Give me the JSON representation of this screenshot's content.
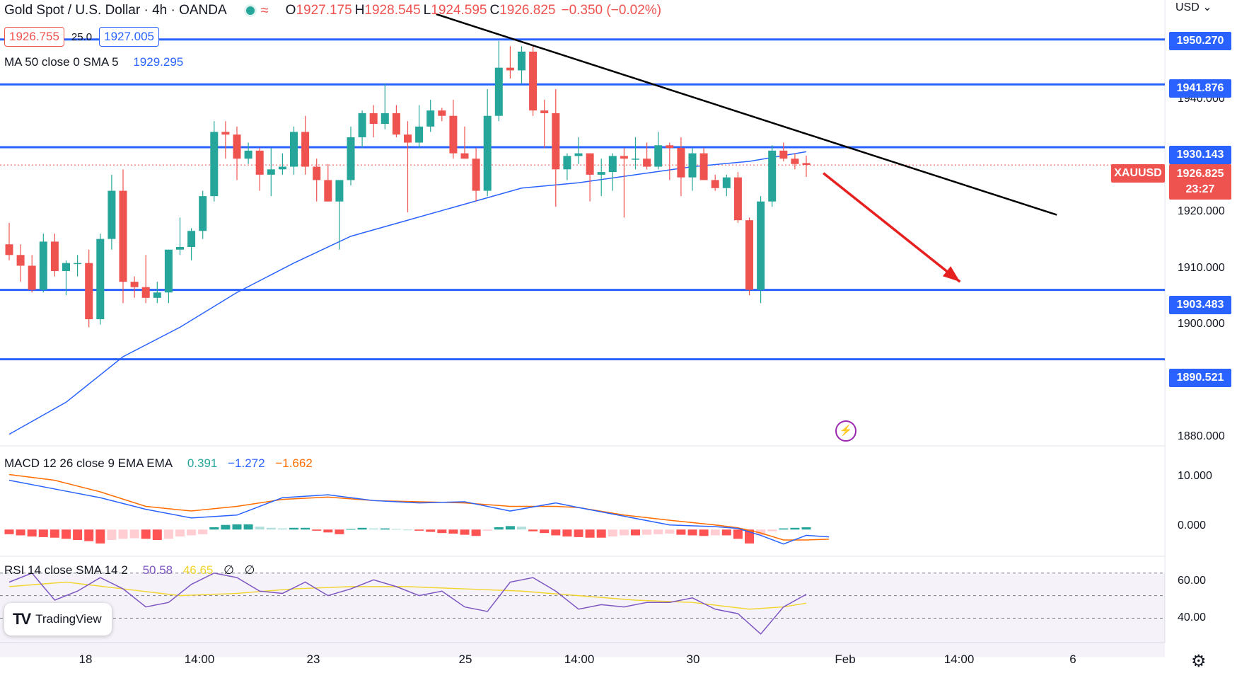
{
  "header": {
    "title": "Gold Spot / U.S. Dollar · 4h · OANDA",
    "open_label": "O",
    "open": "1927.175",
    "high_label": "H",
    "high": "1928.545",
    "low_label": "L",
    "low": "1924.595",
    "close_label": "C",
    "close": "1926.825",
    "change": "−0.350 (−0.02%)"
  },
  "bidask": {
    "bid": "1926.755",
    "spread": "25.0",
    "ask": "1927.005"
  },
  "ma_legend": {
    "name": "MA 50 close 0 SMA 5",
    "value": "1929.295"
  },
  "macd_legend": {
    "name": "MACD 12 26 close 9 EMA EMA",
    "hist": "0.391",
    "macd": "−1.272",
    "signal": "−1.662"
  },
  "rsi_legend": {
    "name": "RSI 14 close SMA 14 2",
    "rsi": "50.58",
    "sma": "46.65",
    "extra1": "∅",
    "extra2": "∅"
  },
  "currency": "USD",
  "symbol": "XAUUSD",
  "current_price": "1926.825",
  "countdown": "23:27",
  "brand": "TradingView",
  "colors": {
    "up": "#26a69a",
    "down": "#ef5350",
    "level": "#2962ff",
    "ma": "#2962ff",
    "macd": "#2962ff",
    "signal": "#ff6d00",
    "rsi": "#7e57c2",
    "rsi_sma": "#f2d530",
    "trend": "#000000",
    "arrow": "#e5201f"
  },
  "chart_data": [
    {
      "type": "candlestick",
      "title": "Gold Spot / U.S. Dollar · 4h · OANDA",
      "ylim": [
        1875,
        1955
      ],
      "yticks": [
        "1880.000",
        "1900.000",
        "1910.000",
        "1920.000",
        "1940.000"
      ],
      "xticks": [
        {
          "label": "18",
          "i": 7
        },
        {
          "label": "14:00",
          "i": 17
        },
        {
          "label": "23",
          "i": 27
        },
        {
          "label": "25",
          "i": 40
        },
        {
          "label": "14:00",
          "i": 50
        },
        {
          "label": "30",
          "i": 60
        },
        {
          "label": "Feb",
          "i": 74
        },
        {
          "label": "14:00",
          "i": 84
        },
        {
          "label": "6",
          "i": 94
        }
      ],
      "candles": [
        [
          1912.0,
          1916.0,
          1909.0,
          1910.0
        ],
        [
          1910.0,
          1912.0,
          1905.0,
          1908.0
        ],
        [
          1908.0,
          1910.0,
          1903.0,
          1903.5
        ],
        [
          1903.5,
          1914.0,
          1903.0,
          1912.5
        ],
        [
          1912.5,
          1914.0,
          1906.0,
          1907.0
        ],
        [
          1907.0,
          1909.0,
          1902.5,
          1908.5
        ],
        [
          1908.5,
          1910.0,
          1906.0,
          1908.5
        ],
        [
          1908.5,
          1911.0,
          1896.5,
          1898.0
        ],
        [
          1898.0,
          1914.0,
          1897.0,
          1913.0
        ],
        [
          1913.0,
          1925.0,
          1911.0,
          1922.0
        ],
        [
          1922.0,
          1926.0,
          1901.0,
          1905.0
        ],
        [
          1905.0,
          1906.0,
          1902.0,
          1904.0
        ],
        [
          1904.0,
          1910.0,
          1901.0,
          1902.0
        ],
        [
          1902.0,
          1905.0,
          1901.0,
          1903.0
        ],
        [
          1903.0,
          1911.0,
          1901.0,
          1911.0
        ],
        [
          1911.0,
          1917.0,
          1910.0,
          1911.5
        ],
        [
          1911.5,
          1915.0,
          1909.0,
          1914.5
        ],
        [
          1914.5,
          1922.0,
          1913.0,
          1921.0
        ],
        [
          1921.0,
          1935.0,
          1920.0,
          1933.0
        ],
        [
          1933.0,
          1935.0,
          1928.0,
          1932.5
        ],
        [
          1932.5,
          1934.0,
          1924.0,
          1928.0
        ],
        [
          1928.0,
          1931.0,
          1927.0,
          1929.5
        ],
        [
          1929.5,
          1930.0,
          1922.0,
          1925.0
        ],
        [
          1925.0,
          1930.0,
          1921.0,
          1926.0
        ],
        [
          1926.0,
          1929.0,
          1925.0,
          1926.5
        ],
        [
          1926.5,
          1934.0,
          1925.0,
          1933.0
        ],
        [
          1933.0,
          1936.0,
          1925.0,
          1926.5
        ],
        [
          1926.5,
          1928.0,
          1920.0,
          1924.0
        ],
        [
          1924.0,
          1927.0,
          1920.0,
          1920.0
        ],
        [
          1920.0,
          1924.0,
          1911.0,
          1924.0
        ],
        [
          1924.0,
          1934.0,
          1923.0,
          1932.0
        ],
        [
          1932.0,
          1937.0,
          1930.0,
          1936.5
        ],
        [
          1936.5,
          1938.0,
          1932.0,
          1934.5
        ],
        [
          1934.5,
          1942.0,
          1933.5,
          1936.5
        ],
        [
          1936.5,
          1938.0,
          1932.0,
          1932.5
        ],
        [
          1932.5,
          1935.0,
          1918.0,
          1931.0
        ],
        [
          1931.0,
          1938.0,
          1930.0,
          1934.0
        ],
        [
          1934.0,
          1939.0,
          1933.0,
          1937.0
        ],
        [
          1937.0,
          1937.5,
          1935.0,
          1936.0
        ],
        [
          1936.0,
          1939.0,
          1928.0,
          1929.0
        ],
        [
          1929.0,
          1934.0,
          1928.0,
          1928.0
        ],
        [
          1928.0,
          1930.0,
          1920.0,
          1922.0
        ],
        [
          1922.0,
          1941.0,
          1921.0,
          1936.0
        ],
        [
          1936.0,
          1950.0,
          1935.0,
          1945.0
        ],
        [
          1945.0,
          1949.0,
          1943.0,
          1944.5
        ],
        [
          1944.5,
          1949.0,
          1942.0,
          1948.0
        ],
        [
          1948.0,
          1949.0,
          1936.0,
          1937.0
        ],
        [
          1937.0,
          1939.0,
          1930.0,
          1936.5
        ],
        [
          1936.5,
          1941.0,
          1919.0,
          1926.0
        ],
        [
          1926.0,
          1929.0,
          1924.0,
          1928.5
        ],
        [
          1928.5,
          1932.0,
          1927.0,
          1929.0
        ],
        [
          1929.0,
          1929.0,
          1920.0,
          1925.0
        ],
        [
          1925.0,
          1928.0,
          1921.0,
          1925.5
        ],
        [
          1925.5,
          1929.0,
          1922.0,
          1928.5
        ],
        [
          1928.5,
          1930.0,
          1917.0,
          1928.0
        ],
        [
          1928.0,
          1932.0,
          1926.0,
          1928.0
        ],
        [
          1928.0,
          1931.0,
          1926.0,
          1926.5
        ],
        [
          1926.5,
          1933.0,
          1926.0,
          1930.5
        ],
        [
          1930.5,
          1931.0,
          1924.0,
          1930.0
        ],
        [
          1930.0,
          1932.0,
          1921.0,
          1924.5
        ],
        [
          1924.5,
          1930.0,
          1922.0,
          1929.0
        ],
        [
          1929.0,
          1930.0,
          1924.0,
          1924.0
        ],
        [
          1924.0,
          1925.0,
          1922.0,
          1922.5
        ],
        [
          1922.5,
          1925.0,
          1921.0,
          1924.5
        ],
        [
          1924.5,
          1925.5,
          1916.0,
          1916.5
        ],
        [
          1916.5,
          1917.0,
          1902.5,
          1903.5
        ],
        [
          1903.5,
          1921.0,
          1901.0,
          1920.0
        ],
        [
          1920.0,
          1930.5,
          1919.0,
          1929.5
        ],
        [
          1929.5,
          1931.0,
          1927.5,
          1928.0
        ],
        [
          1928.0,
          1929.0,
          1926.0,
          1927.0
        ],
        [
          1927.175,
          1928.545,
          1924.595,
          1926.825
        ]
      ],
      "ma50": [
        [
          0,
          1876.5
        ],
        [
          5,
          1882.5
        ],
        [
          10,
          1891.0
        ],
        [
          15,
          1896.5
        ],
        [
          20,
          1903.0
        ],
        [
          25,
          1908.5
        ],
        [
          30,
          1913.5
        ],
        [
          35,
          1916.5
        ],
        [
          40,
          1919.5
        ],
        [
          45,
          1922.5
        ],
        [
          50,
          1923.5
        ],
        [
          55,
          1925.0
        ],
        [
          60,
          1926.5
        ],
        [
          65,
          1927.5
        ],
        [
          70,
          1929.3
        ]
      ],
      "levels": [
        "1950.270",
        "1941.876",
        "1930.143",
        "1903.483",
        "1890.521"
      ],
      "level_values": [
        1950.27,
        1941.876,
        1930.143,
        1903.483,
        1890.521
      ],
      "trendline": [
        [
          37.5,
          1955.0
        ],
        [
          92.0,
          1917.5
        ]
      ],
      "arrow": [
        [
          71.5,
          1925.3
        ],
        [
          83.5,
          1905.0
        ]
      ]
    },
    {
      "type": "macd",
      "ylim": [
        -4,
        12
      ],
      "yticks": [
        "10.000",
        "0.000"
      ],
      "macd": [
        [
          0,
          8.5
        ],
        [
          4,
          7.0
        ],
        [
          8,
          5.5
        ],
        [
          12,
          3.5
        ],
        [
          16,
          2.0
        ],
        [
          20,
          2.5
        ],
        [
          24,
          5.5
        ],
        [
          28,
          6.0
        ],
        [
          32,
          5.0
        ],
        [
          36,
          4.6
        ],
        [
          40,
          4.8
        ],
        [
          44,
          3.2
        ],
        [
          48,
          4.6
        ],
        [
          50,
          3.8
        ],
        [
          54,
          2.3
        ],
        [
          58,
          0.8
        ],
        [
          62,
          0.5
        ],
        [
          64,
          0.2
        ],
        [
          66,
          -1.0
        ],
        [
          68,
          -2.5
        ],
        [
          70,
          -1.0
        ],
        [
          72,
          -1.272
        ]
      ],
      "signal": [
        [
          0,
          9.5
        ],
        [
          4,
          8.5
        ],
        [
          8,
          6.5
        ],
        [
          12,
          4.0
        ],
        [
          16,
          3.2
        ],
        [
          20,
          4.0
        ],
        [
          24,
          5.2
        ],
        [
          28,
          5.6
        ],
        [
          32,
          5.0
        ],
        [
          36,
          4.8
        ],
        [
          40,
          4.6
        ],
        [
          44,
          4.0
        ],
        [
          48,
          4.0
        ],
        [
          50,
          3.8
        ],
        [
          54,
          2.5
        ],
        [
          58,
          1.6
        ],
        [
          62,
          0.8
        ],
        [
          64,
          0.3
        ],
        [
          66,
          -0.6
        ],
        [
          68,
          -1.8
        ],
        [
          70,
          -1.8
        ],
        [
          72,
          -1.662
        ]
      ],
      "histogram": [
        -0.8,
        -1.0,
        -1.2,
        -1.3,
        -1.4,
        -1.6,
        -1.8,
        -2.0,
        -2.4,
        -1.8,
        -1.6,
        -1.5,
        -1.6,
        -1.8,
        -1.6,
        -1.2,
        -1.0,
        -0.8,
        0.4,
        0.8,
        0.9,
        0.9,
        0.5,
        0.3,
        0.2,
        0.3,
        0.3,
        -0.2,
        -0.5,
        -0.8,
        0.1,
        0.3,
        0.2,
        0.2,
        0.1,
        0.0,
        -0.2,
        -0.4,
        -0.6,
        -0.7,
        -0.9,
        -1.1,
        -0.2,
        0.4,
        0.6,
        0.5,
        -0.3,
        -0.6,
        -1.0,
        -1.2,
        -1.3,
        -1.4,
        -1.4,
        -1.2,
        -1.0,
        -1.0,
        -0.9,
        -0.8,
        -0.7,
        -0.9,
        -1.0,
        -1.1,
        -1.0,
        -1.0,
        -1.6,
        -2.4,
        -1.0,
        -0.3,
        0.2,
        0.3,
        0.391
      ]
    },
    {
      "type": "line",
      "title": "RSI 14",
      "ylim": [
        32,
        64
      ],
      "yticks": [
        "60.00",
        "40.00"
      ],
      "rsi": [
        [
          0,
          56
        ],
        [
          2,
          60
        ],
        [
          4,
          48
        ],
        [
          6,
          52
        ],
        [
          8,
          58
        ],
        [
          10,
          53
        ],
        [
          12,
          45
        ],
        [
          14,
          47
        ],
        [
          16,
          55
        ],
        [
          18,
          60
        ],
        [
          20,
          58
        ],
        [
          22,
          52
        ],
        [
          24,
          51
        ],
        [
          26,
          56
        ],
        [
          28,
          50
        ],
        [
          30,
          53
        ],
        [
          32,
          57
        ],
        [
          34,
          54
        ],
        [
          36,
          50
        ],
        [
          38,
          52
        ],
        [
          40,
          45
        ],
        [
          42,
          43
        ],
        [
          44,
          56
        ],
        [
          46,
          58
        ],
        [
          48,
          52
        ],
        [
          50,
          44
        ],
        [
          52,
          46
        ],
        [
          54,
          45
        ],
        [
          56,
          47
        ],
        [
          58,
          47
        ],
        [
          60,
          49
        ],
        [
          62,
          44
        ],
        [
          64,
          42
        ],
        [
          66,
          33
        ],
        [
          68,
          45
        ],
        [
          70,
          50.58
        ]
      ],
      "rsi_sma": [
        [
          0,
          54
        ],
        [
          5,
          56
        ],
        [
          10,
          53
        ],
        [
          15,
          50
        ],
        [
          20,
          51
        ],
        [
          25,
          53
        ],
        [
          30,
          54
        ],
        [
          35,
          54
        ],
        [
          40,
          53
        ],
        [
          45,
          52
        ],
        [
          50,
          50
        ],
        [
          55,
          48
        ],
        [
          60,
          47
        ],
        [
          65,
          44
        ],
        [
          68,
          45
        ],
        [
          70,
          46.65
        ]
      ]
    }
  ]
}
